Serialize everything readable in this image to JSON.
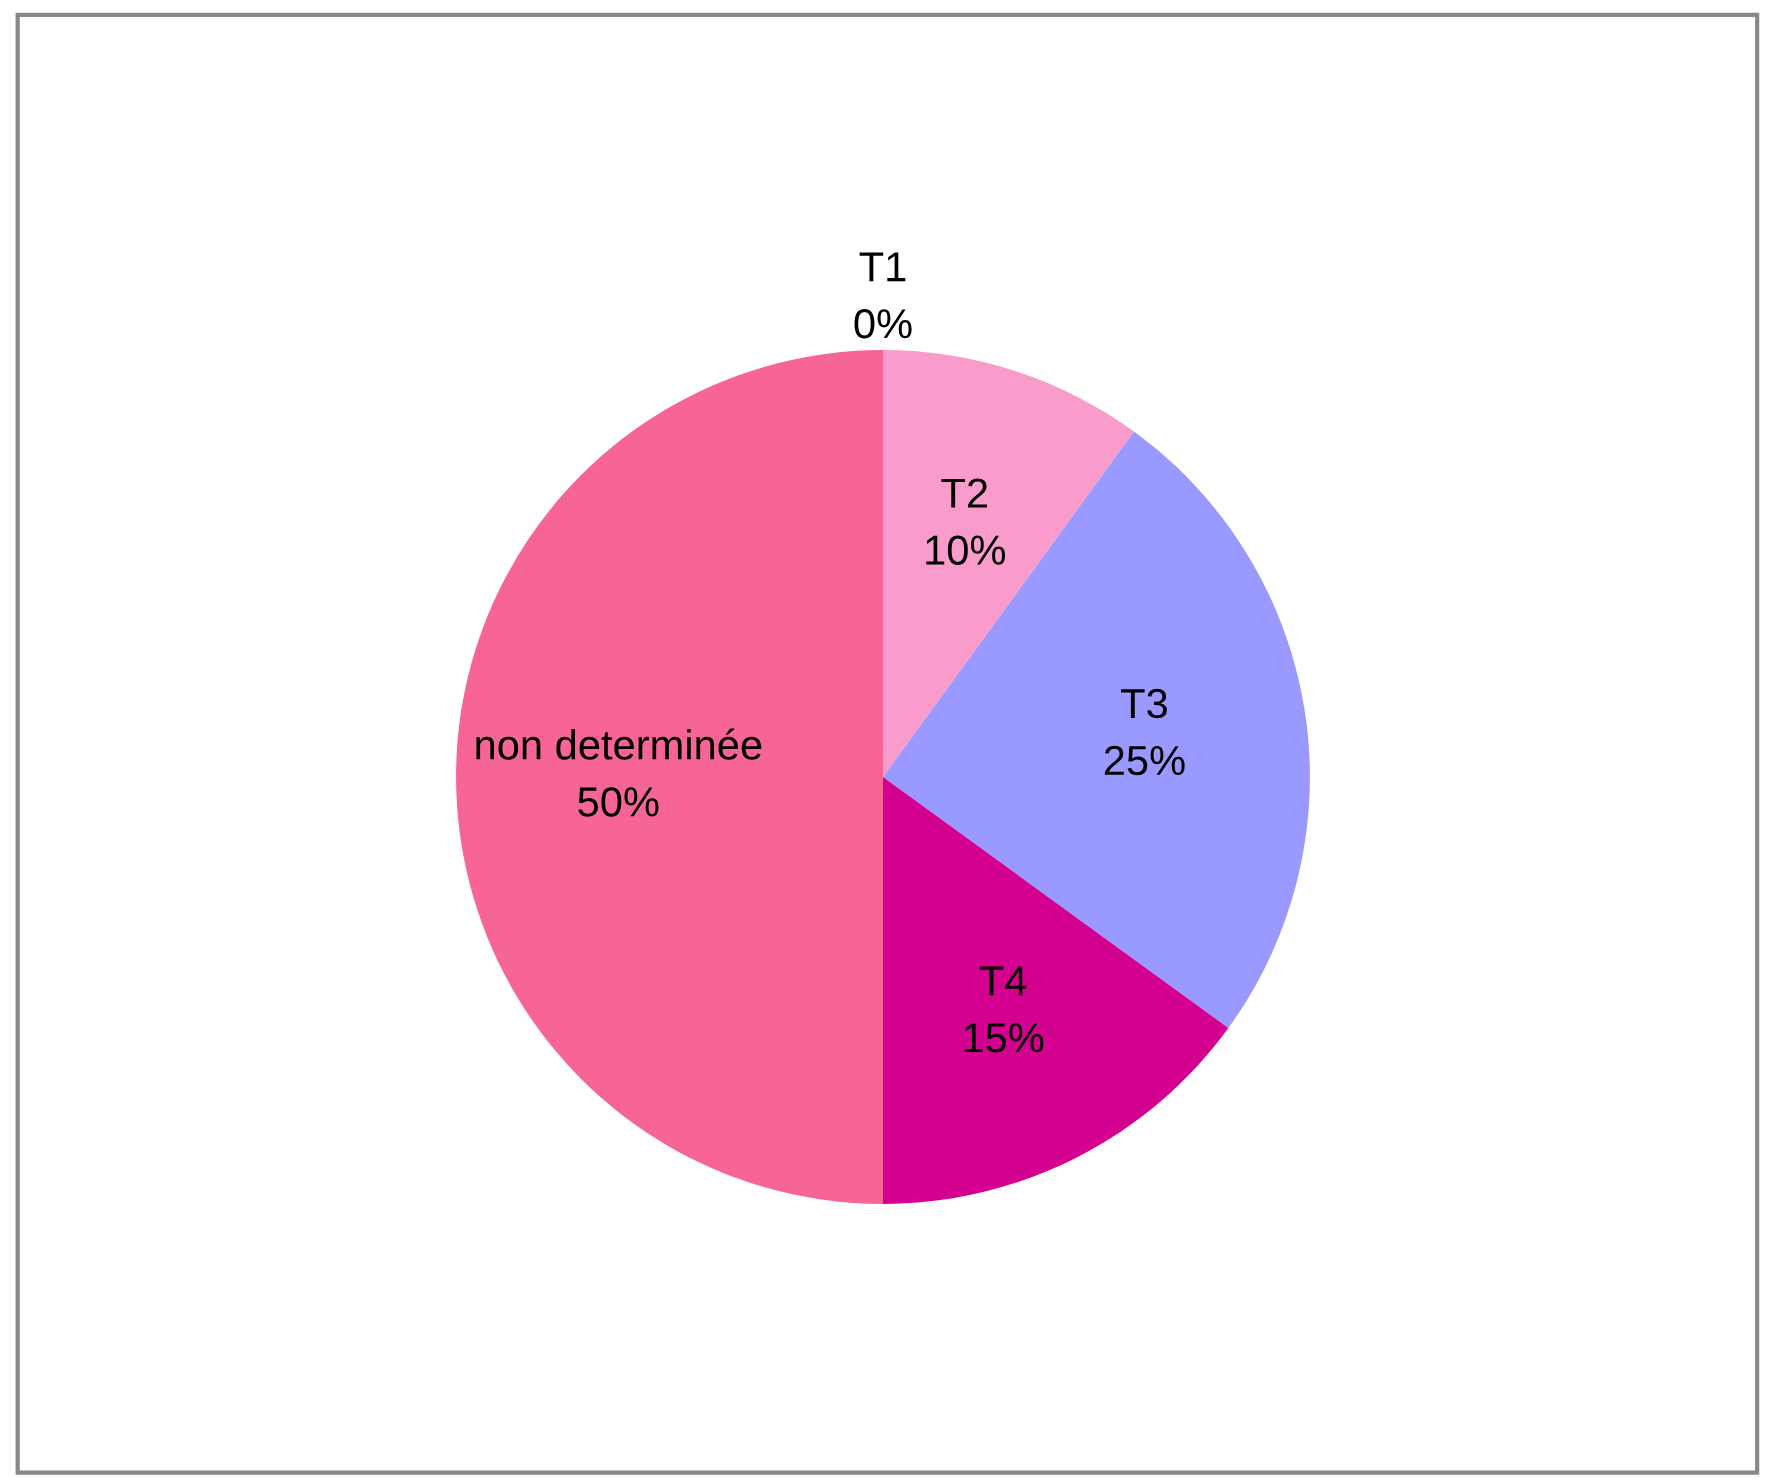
{
  "chart_data": {
    "type": "pie",
    "categories": [
      "T1",
      "T2",
      "T3",
      "T4",
      "non determinée"
    ],
    "values": [
      0,
      10,
      25,
      15,
      50
    ],
    "value_labels": [
      "0%",
      "10%",
      "25%",
      "15%",
      "50%"
    ],
    "colors": [
      "#ff66cc",
      "#f99ccc",
      "#9999ff",
      "#d4008f",
      "#f76596"
    ],
    "legend": false
  }
}
